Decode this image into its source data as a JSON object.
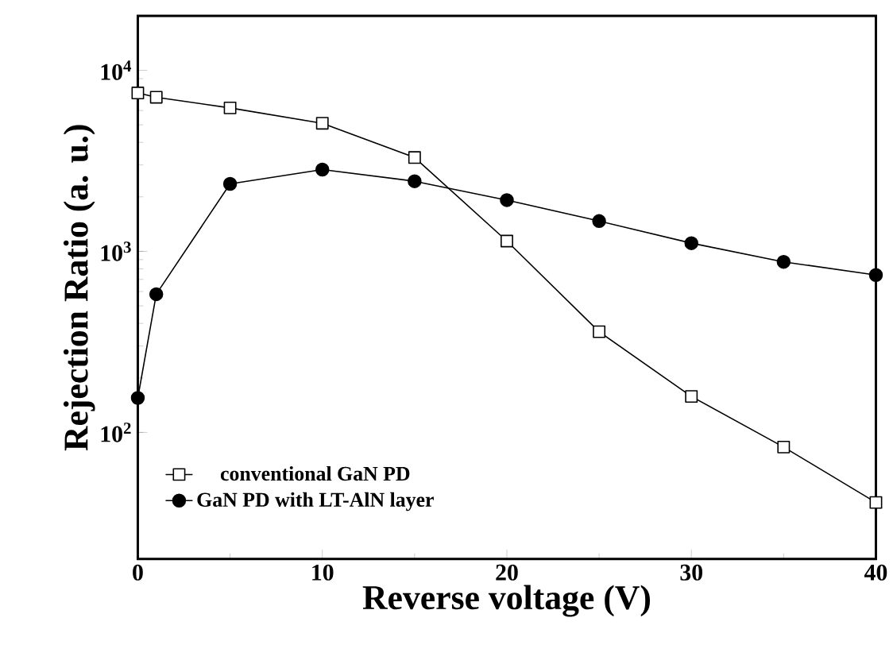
{
  "chart_data": {
    "type": "line",
    "xlabel": "Reverse voltage (V)",
    "ylabel": "Rejection Ratio (a. u.)",
    "x": [
      0,
      1,
      5,
      10,
      15,
      20,
      25,
      30,
      35,
      40
    ],
    "series": [
      {
        "name": "conventional GaN PD",
        "color": "#000000",
        "marker": "square",
        "values": [
          7500,
          7100,
          6200,
          5100,
          3300,
          1140,
          360,
          158,
          83,
          41
        ]
      },
      {
        "name": "GaN PD with LT-AlN layer",
        "color": "#000000",
        "marker": "circle",
        "values": [
          155,
          580,
          2360,
          2830,
          2440,
          1920,
          1470,
          1110,
          875,
          740
        ]
      }
    ],
    "log": "y",
    "xlim": [
      0,
      40
    ],
    "ylim": [
      20,
      20000
    ],
    "xticks": [
      0,
      10,
      20,
      30,
      40
    ],
    "yticks": [
      {
        "value": 100,
        "label": "10$^{2}$"
      },
      {
        "value": 1000,
        "label": "10$^{3}$"
      },
      {
        "value": 10000,
        "label": "10$^{4}$"
      }
    ],
    "legend": "bottom left",
    "grid": false,
    "line_style": "solid"
  }
}
